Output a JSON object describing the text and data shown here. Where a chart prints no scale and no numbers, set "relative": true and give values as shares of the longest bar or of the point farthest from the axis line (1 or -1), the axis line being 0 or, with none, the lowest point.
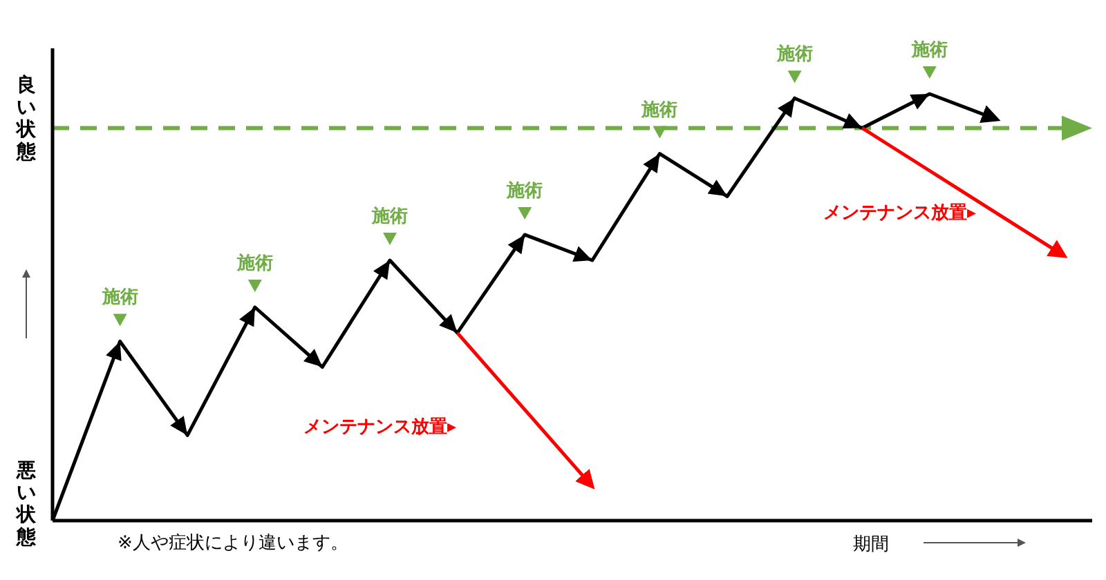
{
  "chart_data": {
    "type": "line",
    "relative": true,
    "xlabel": "期間",
    "marker": "none",
    "line_style": "solid",
    "categories": [
      null,
      null,
      null,
      null,
      null,
      null,
      null,
      null,
      null,
      null,
      null,
      null,
      null,
      null,
      null,
      null
    ],
    "series": [
      {
        "color": "#000000",
        "values": [
          0,
          0.42,
          0.2,
          0.5,
          0.36,
          0.61,
          0.44,
          0.67,
          0.61,
          0.86,
          0.76,
          0.99,
          0.92,
          1.0,
          0.94,
          null
        ]
      },
      {
        "color": "#ff0000",
        "values": [
          null,
          null,
          null,
          null,
          null,
          null,
          0.44,
          0.26,
          0.08,
          null,
          null,
          null,
          null,
          null,
          null,
          null
        ]
      },
      {
        "color": "#ff0000",
        "values": [
          null,
          null,
          null,
          null,
          null,
          null,
          null,
          null,
          null,
          null,
          null,
          null,
          0.92,
          0.82,
          0.72,
          0.62
        ]
      }
    ],
    "ref_lines": [
      {
        "axis": "y",
        "value": 0.92,
        "color": "#70ad47",
        "line_style": "dashed"
      }
    ],
    "annotations": [
      {
        "text": "施術",
        "y": 0.42
      },
      {
        "text": "施術",
        "y": 0.5
      },
      {
        "text": "施術",
        "y": 0.61
      },
      {
        "text": "施術",
        "y": 0.67
      },
      {
        "text": "施術",
        "y": 0.86
      },
      {
        "text": "施術",
        "y": 0.99
      },
      {
        "text": "施術",
        "y": 1.0
      },
      "メンテナンス放置▸",
      "メンテナンス放置▸",
      "良い状態",
      "悪い状態",
      "※人や症状により違います。"
    ]
  }
}
